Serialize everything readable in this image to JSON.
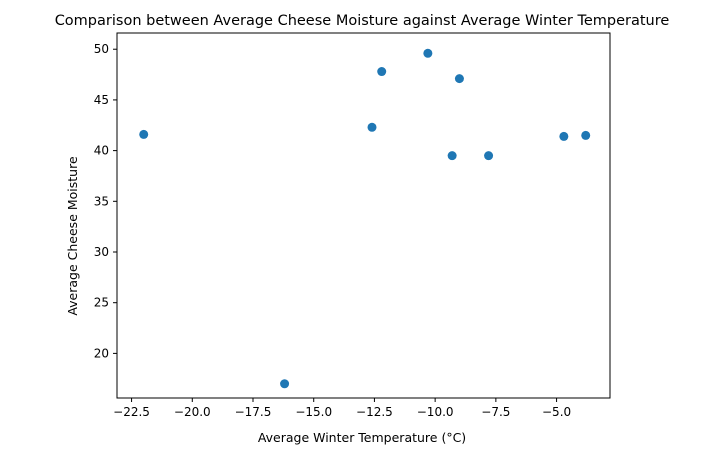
{
  "chart_data": {
    "type": "scatter",
    "title": "Comparison between Average Cheese Moisture against Average Winter Temperature",
    "xlabel": "Average Winter Temperature (°C)",
    "ylabel": "Average Cheese Moisture",
    "xlim": [
      -23.1,
      -2.8
    ],
    "ylim": [
      15.6,
      51.6
    ],
    "xticks": [
      -22.5,
      -20.0,
      -17.5,
      -15.0,
      -12.5,
      -10.0,
      -7.5,
      -5.0
    ],
    "xtick_labels": [
      "−22.5",
      "−20.0",
      "−17.5",
      "−15.0",
      "−12.5",
      "−10.0",
      "−7.5",
      "−5.0"
    ],
    "yticks": [
      20,
      25,
      30,
      35,
      40,
      45,
      50
    ],
    "ytick_labels": [
      "20",
      "25",
      "30",
      "35",
      "40",
      "45",
      "50"
    ],
    "grid": false,
    "marker_color": "#1f77b4",
    "points": [
      {
        "x": -22.0,
        "y": 41.6
      },
      {
        "x": -16.2,
        "y": 17.0
      },
      {
        "x": -12.6,
        "y": 42.3
      },
      {
        "x": -12.2,
        "y": 47.8
      },
      {
        "x": -10.3,
        "y": 49.6
      },
      {
        "x": -9.3,
        "y": 39.5
      },
      {
        "x": -9.0,
        "y": 47.1
      },
      {
        "x": -7.8,
        "y": 39.5
      },
      {
        "x": -4.7,
        "y": 41.4
      },
      {
        "x": -3.8,
        "y": 41.5
      }
    ]
  }
}
